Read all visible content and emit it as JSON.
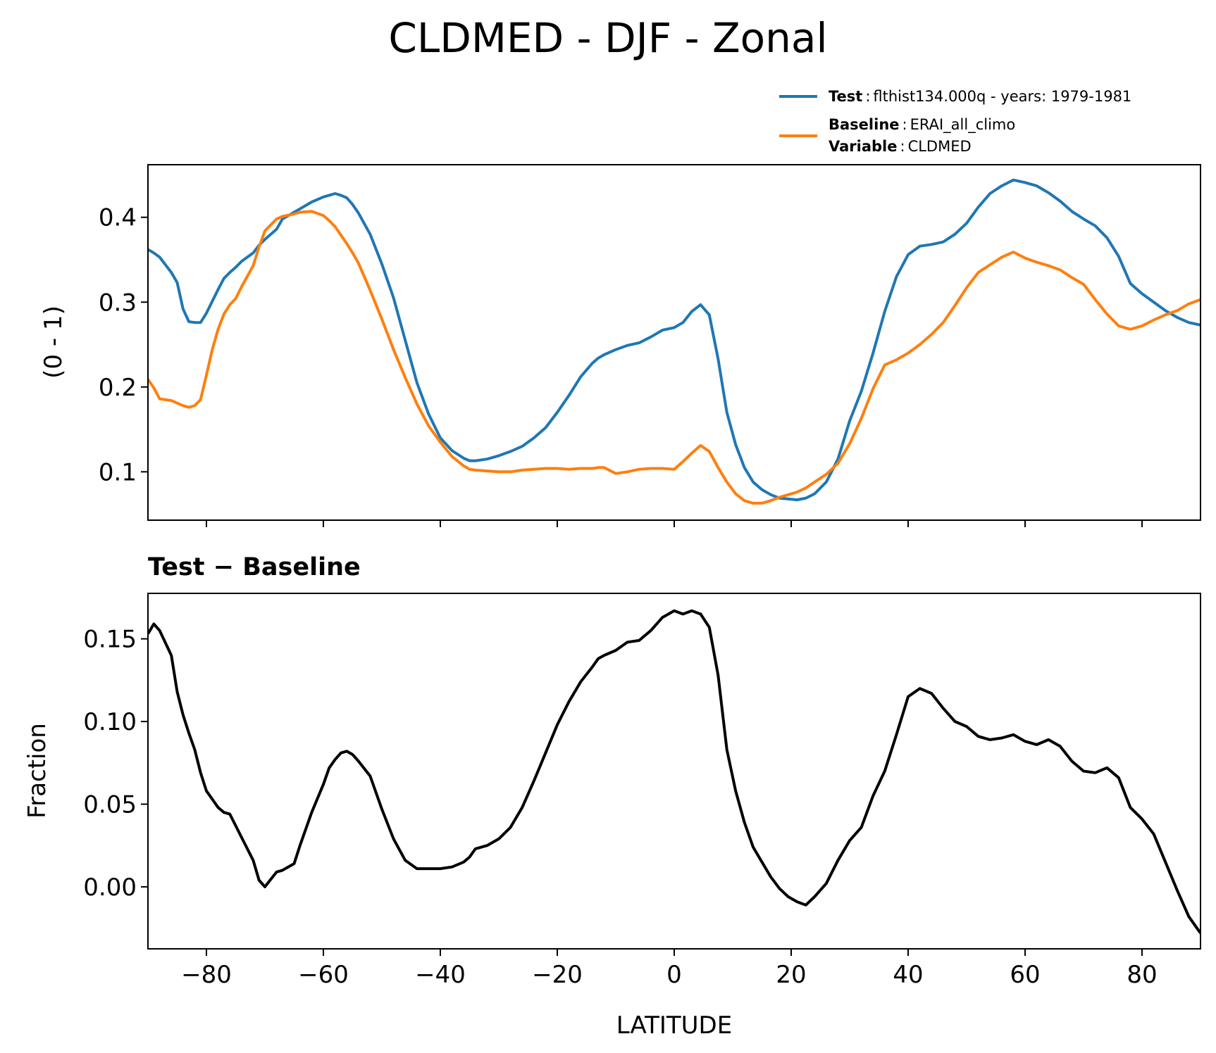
{
  "chart_data": [
    {
      "type": "line",
      "title": "CLDMED - DJF - Zonal",
      "xlabel": "",
      "ylabel": "(0 - 1)",
      "xlim": [
        -90,
        90
      ],
      "ylim": [
        0.043,
        0.462
      ],
      "yticks": [
        0.1,
        0.2,
        0.3,
        0.4
      ],
      "ytick_labels": [
        "0.1",
        "0.2",
        "0.3",
        "0.4"
      ],
      "xticks": [
        -80,
        -60,
        -40,
        -20,
        0,
        20,
        40,
        60,
        80
      ],
      "legend": {
        "position": "above top-right",
        "entries": [
          {
            "name_bold": "Test",
            "sep": ":",
            "name_rest": "flthist134.000q - years: 1979-1981",
            "color": "#1f77b4"
          },
          {
            "name_bold": "Baseline",
            "sep": ":",
            "name_rest": "ERAI_all_climo",
            "line2_bold": "Variable",
            "line2_sep": ":",
            "line2_rest": "CLDMED",
            "color": "#ff7f0e"
          }
        ]
      },
      "series": [
        {
          "name": "Test",
          "color": "#1f77b4",
          "x": [
            -90,
            -89,
            -88,
            -86,
            -85,
            -84,
            -83,
            -82,
            -81,
            -80,
            -79,
            -78,
            -77,
            -76,
            -75,
            -74,
            -72,
            -71,
            -70,
            -68,
            -67,
            -65,
            -64,
            -62,
            -60,
            -59,
            -58,
            -57,
            -56,
            -55,
            -54,
            -52,
            -50,
            -48,
            -46,
            -44,
            -42,
            -40,
            -38,
            -36,
            -35,
            -34,
            -32,
            -30,
            -28,
            -26,
            -24,
            -22,
            -20,
            -18,
            -16,
            -14,
            -13,
            -12,
            -10,
            -8,
            -6,
            -4,
            -2,
            0,
            1.5,
            3,
            4.5,
            6,
            7.5,
            9,
            10.5,
            12,
            13.5,
            15,
            16.5,
            18,
            19.5,
            21,
            22.5,
            24,
            26,
            28,
            30,
            32,
            34,
            36,
            38,
            40,
            42,
            44,
            46,
            48,
            50,
            52,
            54,
            56,
            58,
            60,
            62,
            64,
            66,
            68,
            70,
            72,
            74,
            76,
            78,
            80,
            82,
            84,
            86,
            88,
            90
          ],
          "values": [
            0.362,
            0.358,
            0.353,
            0.335,
            0.323,
            0.292,
            0.277,
            0.276,
            0.276,
            0.287,
            0.301,
            0.315,
            0.328,
            0.335,
            0.341,
            0.348,
            0.358,
            0.367,
            0.374,
            0.386,
            0.398,
            0.406,
            0.41,
            0.418,
            0.424,
            0.426,
            0.428,
            0.426,
            0.423,
            0.415,
            0.405,
            0.38,
            0.345,
            0.305,
            0.255,
            0.205,
            0.168,
            0.14,
            0.125,
            0.116,
            0.113,
            0.113,
            0.115,
            0.119,
            0.124,
            0.13,
            0.14,
            0.152,
            0.17,
            0.19,
            0.212,
            0.228,
            0.234,
            0.238,
            0.244,
            0.249,
            0.252,
            0.259,
            0.267,
            0.27,
            0.276,
            0.289,
            0.297,
            0.285,
            0.233,
            0.17,
            0.132,
            0.105,
            0.088,
            0.079,
            0.073,
            0.069,
            0.068,
            0.067,
            0.069,
            0.074,
            0.088,
            0.115,
            0.16,
            0.195,
            0.24,
            0.289,
            0.33,
            0.356,
            0.366,
            0.368,
            0.371,
            0.38,
            0.393,
            0.412,
            0.428,
            0.437,
            0.444,
            0.441,
            0.437,
            0.429,
            0.419,
            0.407,
            0.398,
            0.39,
            0.376,
            0.354,
            0.322,
            0.31,
            0.3,
            0.29,
            0.282,
            0.276,
            0.273
          ]
        },
        {
          "name": "Baseline",
          "color": "#ff7f0e",
          "x": [
            -90,
            -89,
            -88,
            -86,
            -85,
            -84,
            -83,
            -82,
            -81,
            -80,
            -79,
            -78,
            -77,
            -76,
            -75,
            -74,
            -72,
            -71,
            -70,
            -68,
            -67,
            -65,
            -64,
            -62,
            -60,
            -59,
            -58,
            -57,
            -56,
            -55,
            -54,
            -52,
            -50,
            -48,
            -46,
            -44,
            -42,
            -40,
            -38,
            -36,
            -35,
            -34,
            -32,
            -30,
            -28,
            -26,
            -24,
            -22,
            -20,
            -18,
            -16,
            -14,
            -13,
            -12,
            -10,
            -8,
            -6,
            -4,
            -2,
            0,
            1.5,
            3,
            4.5,
            6,
            7.5,
            9,
            10.5,
            12,
            13.5,
            15,
            16.5,
            18,
            19.5,
            21,
            22.5,
            24,
            26,
            28,
            30,
            32,
            34,
            36,
            38,
            40,
            42,
            44,
            46,
            48,
            50,
            52,
            54,
            56,
            58,
            60,
            62,
            64,
            66,
            68,
            70,
            72,
            74,
            76,
            78,
            80,
            82,
            84,
            86,
            88,
            90
          ],
          "values": [
            0.209,
            0.199,
            0.186,
            0.184,
            0.181,
            0.178,
            0.176,
            0.178,
            0.185,
            0.214,
            0.244,
            0.268,
            0.286,
            0.297,
            0.304,
            0.318,
            0.343,
            0.365,
            0.384,
            0.398,
            0.401,
            0.404,
            0.406,
            0.407,
            0.402,
            0.396,
            0.389,
            0.379,
            0.369,
            0.358,
            0.346,
            0.314,
            0.28,
            0.244,
            0.211,
            0.18,
            0.154,
            0.135,
            0.118,
            0.107,
            0.103,
            0.102,
            0.101,
            0.1,
            0.1,
            0.102,
            0.103,
            0.104,
            0.104,
            0.103,
            0.104,
            0.104,
            0.105,
            0.105,
            0.098,
            0.1,
            0.103,
            0.104,
            0.104,
            0.103,
            0.112,
            0.122,
            0.131,
            0.124,
            0.105,
            0.088,
            0.074,
            0.066,
            0.063,
            0.063,
            0.066,
            0.07,
            0.073,
            0.076,
            0.081,
            0.088,
            0.097,
            0.11,
            0.133,
            0.163,
            0.198,
            0.226,
            0.232,
            0.24,
            0.25,
            0.262,
            0.276,
            0.296,
            0.317,
            0.335,
            0.344,
            0.353,
            0.359,
            0.352,
            0.347,
            0.343,
            0.338,
            0.329,
            0.321,
            0.303,
            0.286,
            0.272,
            0.268,
            0.272,
            0.279,
            0.285,
            0.29,
            0.298,
            0.303
          ]
        }
      ]
    },
    {
      "type": "line",
      "title": "Test − Baseline",
      "xlabel": "LATITUDE",
      "ylabel": "Fraction",
      "xlim": [
        -90,
        90
      ],
      "ylim": [
        -0.0375,
        0.1775
      ],
      "yticks": [
        0.0,
        0.05,
        0.1,
        0.15
      ],
      "ytick_labels": [
        "0.00",
        "0.05",
        "0.10",
        "0.15"
      ],
      "xticks": [
        -80,
        -60,
        -40,
        -20,
        0,
        20,
        40,
        60,
        80
      ],
      "xtick_labels": [
        "−80",
        "−60",
        "−40",
        "−20",
        "0",
        "20",
        "40",
        "60",
        "80"
      ],
      "series": [
        {
          "name": "Test − Baseline",
          "color": "#000000",
          "x": [
            -90,
            -89,
            -88,
            -86,
            -85,
            -84,
            -83,
            -82,
            -81,
            -80,
            -79,
            -78,
            -77,
            -76,
            -75,
            -74,
            -72,
            -71,
            -70,
            -68,
            -67,
            -65,
            -64,
            -62,
            -60,
            -59,
            -58,
            -57,
            -56,
            -55,
            -54,
            -52,
            -50,
            -48,
            -46,
            -44,
            -42,
            -40,
            -38,
            -36,
            -35,
            -34,
            -32,
            -30,
            -28,
            -26,
            -24,
            -22,
            -20,
            -18,
            -16,
            -14,
            -13,
            -12,
            -10,
            -8,
            -6,
            -4,
            -2,
            0,
            1.5,
            3,
            4.5,
            6,
            7.5,
            9,
            10.5,
            12,
            13.5,
            15,
            16.5,
            18,
            19.5,
            21,
            22.5,
            24,
            26,
            28,
            30,
            32,
            34,
            36,
            38,
            40,
            42,
            44,
            46,
            48,
            50,
            52,
            54,
            56,
            58,
            60,
            62,
            64,
            66,
            68,
            70,
            72,
            74,
            76,
            78,
            80,
            82,
            84,
            86,
            88,
            90
          ],
          "values": [
            0.153,
            0.159,
            0.155,
            0.14,
            0.118,
            0.104,
            0.093,
            0.083,
            0.069,
            0.058,
            0.053,
            0.048,
            0.045,
            0.044,
            0.037,
            0.03,
            0.016,
            0.004,
            0.0,
            0.009,
            0.01,
            0.014,
            0.025,
            0.045,
            0.062,
            0.072,
            0.077,
            0.081,
            0.082,
            0.08,
            0.076,
            0.067,
            0.047,
            0.029,
            0.016,
            0.011,
            0.011,
            0.011,
            0.012,
            0.015,
            0.018,
            0.023,
            0.025,
            0.029,
            0.036,
            0.048,
            0.064,
            0.081,
            0.098,
            0.112,
            0.124,
            0.133,
            0.138,
            0.14,
            0.143,
            0.148,
            0.149,
            0.155,
            0.163,
            0.167,
            0.165,
            0.167,
            0.165,
            0.157,
            0.128,
            0.083,
            0.058,
            0.039,
            0.024,
            0.015,
            0.006,
            -0.001,
            -0.006,
            -0.009,
            -0.011,
            -0.006,
            0.002,
            0.016,
            0.028,
            0.036,
            0.055,
            0.07,
            0.092,
            0.115,
            0.12,
            0.117,
            0.108,
            0.1,
            0.097,
            0.091,
            0.089,
            0.09,
            0.092,
            0.088,
            0.086,
            0.089,
            0.085,
            0.076,
            0.07,
            0.069,
            0.072,
            0.066,
            0.048,
            0.041,
            0.032,
            0.015,
            -0.002,
            -0.018,
            -0.028
          ]
        }
      ]
    }
  ]
}
